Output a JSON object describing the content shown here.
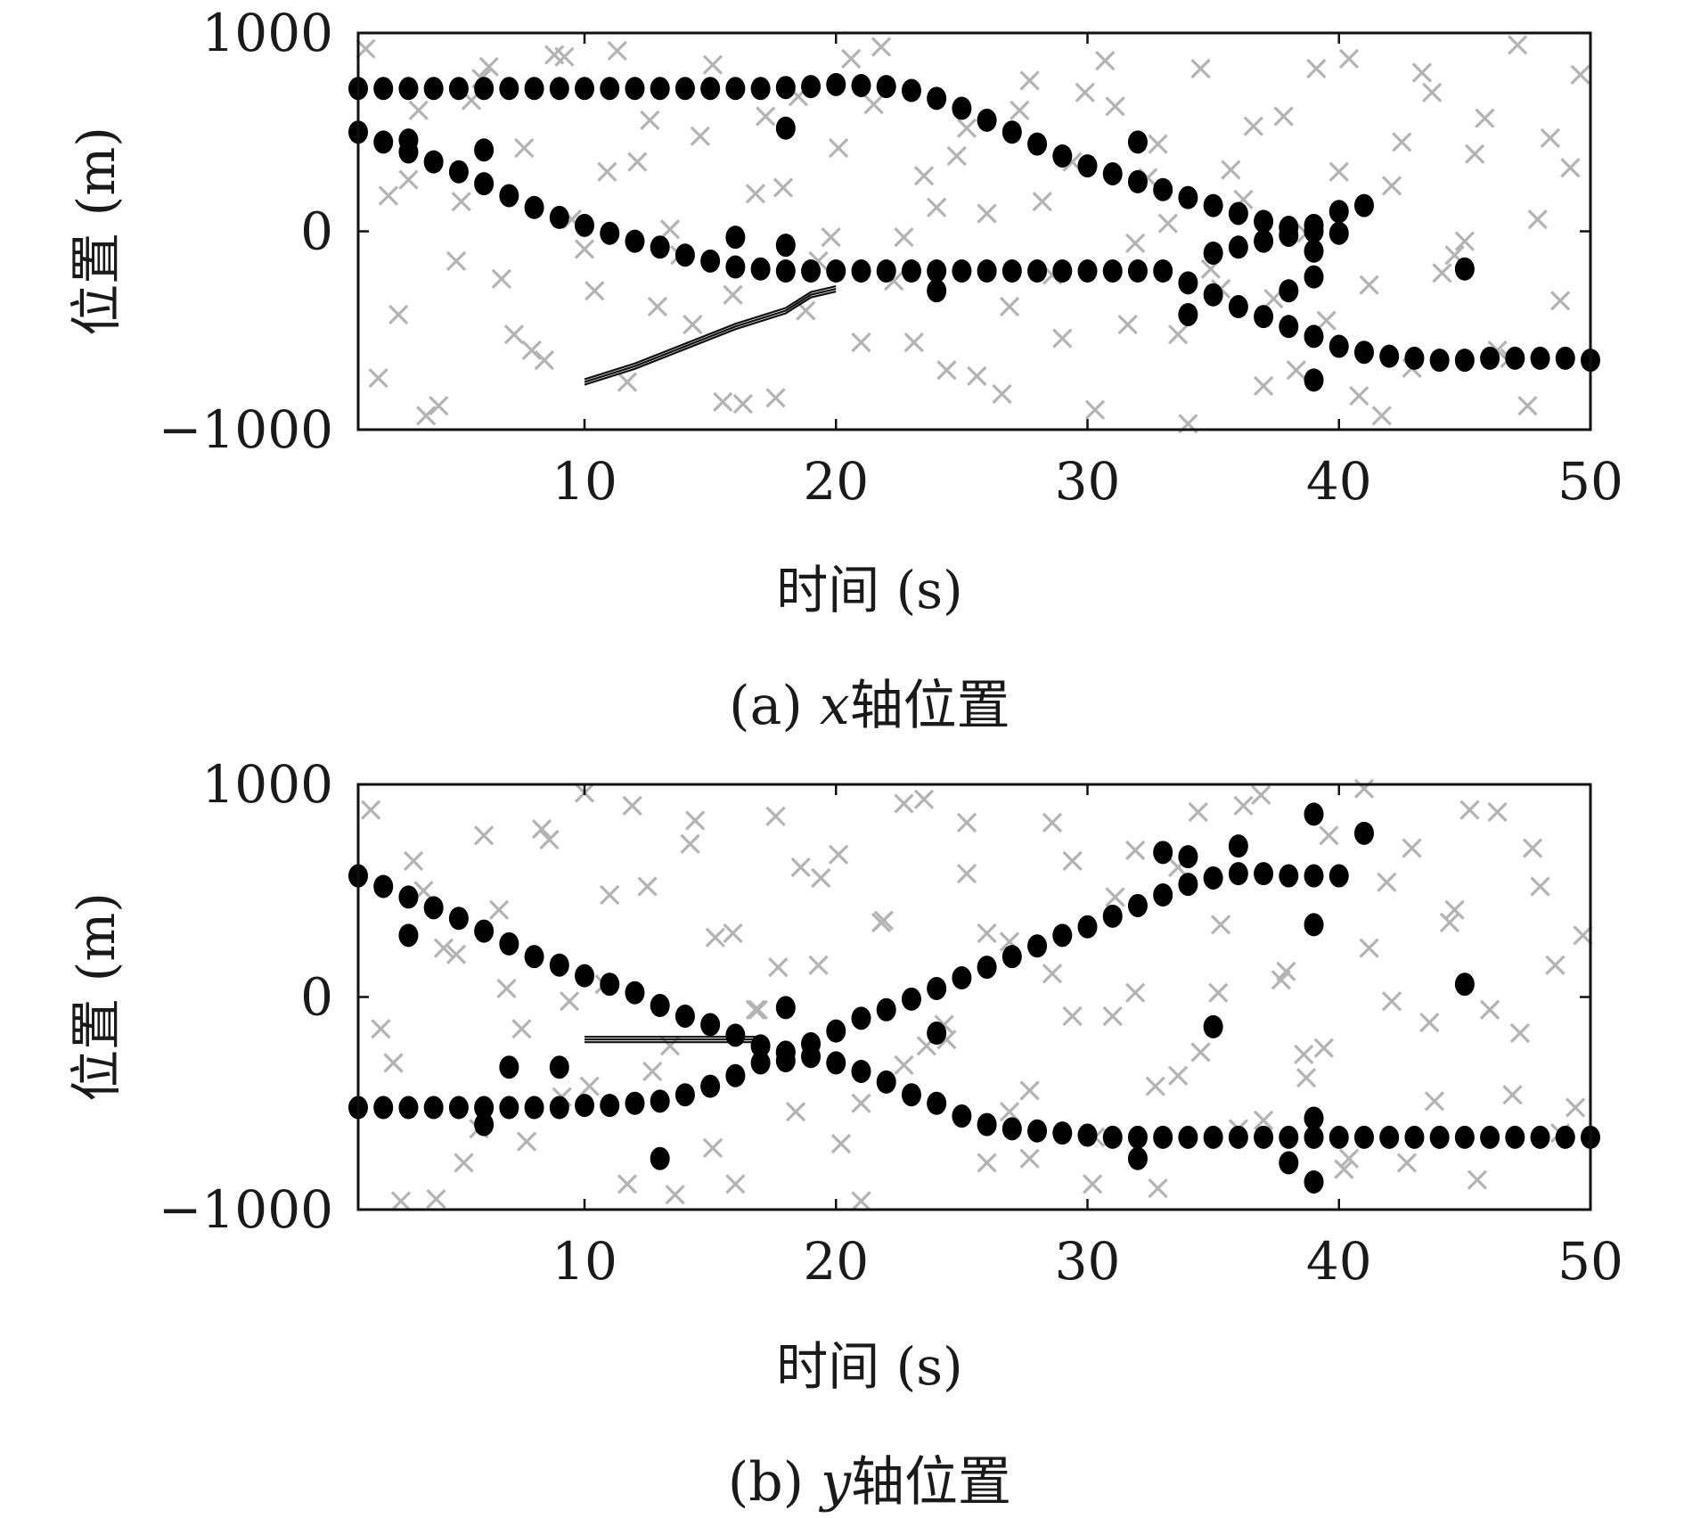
{
  "figure": {
    "panels": [
      {
        "caption_prefix": "(a) ",
        "caption_var": "x",
        "caption_suffix": "轴位置",
        "xlabel": "时间 (s)",
        "ylabel": "位置 (m)"
      },
      {
        "caption_prefix": "(b) ",
        "caption_var": "y",
        "caption_suffix": "轴位置",
        "xlabel": "时间 (s)",
        "ylabel": "位置 (m)"
      }
    ]
  },
  "colors": {
    "clutter": "#b3b3b3",
    "measurement": "#000000",
    "track": "#111111",
    "frame": "#111111"
  },
  "chart_data": [
    {
      "type": "scatter",
      "xlabel": "时间 (s)",
      "ylabel": "位置 (m)",
      "xlim": [
        1,
        50
      ],
      "ylim": [
        -1000,
        1000
      ],
      "xticks": [
        10,
        20,
        30,
        40,
        50
      ],
      "yticks": [
        -1000,
        0,
        1000
      ],
      "xtick_labels": [
        "10",
        "20",
        "30",
        "40",
        "50"
      ],
      "ytick_labels": [
        "−1000",
        "0",
        "1000"
      ],
      "grid": false,
      "series": [
        {
          "marker": "circle",
          "x": [
            1,
            2,
            3,
            4,
            5,
            6,
            7,
            8,
            9,
            10,
            11,
            12,
            13,
            14,
            15,
            16,
            17,
            18,
            19,
            20,
            21,
            22,
            23,
            24,
            25,
            26,
            27,
            28,
            29,
            30,
            31,
            32,
            33,
            34,
            35,
            36,
            37,
            38,
            39,
            40,
            1,
            2,
            3,
            4,
            5,
            6,
            7,
            8,
            9,
            10,
            11,
            12,
            13,
            14,
            15,
            16,
            17,
            18,
            19,
            20,
            21,
            22,
            23,
            24,
            25,
            26,
            27,
            28,
            29,
            30,
            31,
            32,
            33,
            34,
            35,
            36,
            37,
            38,
            39,
            40,
            41,
            42,
            43,
            44,
            45,
            46,
            47,
            48,
            49,
            50,
            35,
            36,
            37,
            38,
            39,
            40,
            18,
            32,
            16,
            18,
            24,
            34,
            39,
            41,
            45,
            38,
            6,
            3,
            39,
            39
          ],
          "y": [
            720,
            720,
            720,
            720,
            720,
            720,
            720,
            720,
            720,
            720,
            720,
            720,
            720,
            720,
            720,
            720,
            720,
            725,
            730,
            740,
            735,
            730,
            710,
            670,
            620,
            560,
            500,
            440,
            380,
            330,
            290,
            250,
            210,
            170,
            130,
            90,
            50,
            20,
            0,
            -10,
            500,
            450,
            400,
            350,
            300,
            240,
            180,
            120,
            70,
            30,
            -10,
            -50,
            -80,
            -120,
            -150,
            -180,
            -190,
            -200,
            -200,
            -200,
            -200,
            -200,
            -200,
            -200,
            -200,
            -200,
            -200,
            -200,
            -200,
            -200,
            -200,
            -200,
            -200,
            -260,
            -320,
            -380,
            -430,
            -480,
            -530,
            -580,
            -610,
            -630,
            -640,
            -650,
            -650,
            -640,
            -640,
            -640,
            -640,
            -650,
            -110,
            -80,
            -50,
            -20,
            30,
            100,
            520,
            450,
            -30,
            -70,
            -300,
            -420,
            -750,
            130,
            -190,
            -300,
            410,
            460,
            -230,
            -100
          ]
        },
        {
          "marker": "x",
          "x": [
            1.3,
            2.6,
            3.4,
            4.2,
            5.1,
            5.9,
            6.7,
            7.6,
            8.4,
            9.2,
            10.0,
            10.9,
            11.7,
            12.6,
            13.4,
            14.3,
            15.1,
            15.9,
            16.8,
            17.6,
            18.5,
            19.3,
            20.1,
            21.0,
            21.8,
            22.7,
            23.5,
            24.4,
            25.2,
            26.0,
            26.9,
            27.7,
            28.6,
            29.4,
            30.3,
            31.1,
            31.9,
            32.8,
            33.6,
            34.5,
            35.3,
            36.2,
            37.0,
            37.8,
            38.7,
            39.5,
            40.4,
            41.2,
            42.1,
            42.9,
            43.7,
            44.6,
            45.4,
            46.3,
            47.1,
            47.9,
            48.8,
            49.6,
            1.8,
            3.0,
            4.9,
            6.2,
            7.9,
            9.5,
            11.3,
            12.9,
            14.6,
            16.3,
            17.9,
            19.8,
            21.5,
            23.1,
            24.8,
            26.6,
            28.2,
            29.9,
            31.6,
            33.2,
            34.9,
            36.6,
            38.3,
            40.0,
            41.7,
            43.3,
            45.0,
            46.8,
            48.4,
            2.2,
            3.7,
            5.5,
            7.2,
            8.8,
            10.4,
            12.1,
            13.8,
            15.5,
            17.2,
            18.8,
            20.6,
            22.3,
            24.0,
            25.6,
            27.3,
            29.0,
            30.7,
            32.4,
            34.0,
            35.7,
            37.4,
            39.1,
            40.8,
            42.5,
            44.1,
            45.8,
            47.5,
            49.2
          ],
          "y": [
            920,
            -420,
            610,
            -880,
            150,
            770,
            -240,
            420,
            -650,
            880,
            -90,
            300,
            -760,
            560,
            10,
            -470,
            840,
            -320,
            190,
            -840,
            680,
            -150,
            420,
            -560,
            930,
            -30,
            280,
            -700,
            520,
            90,
            -380,
            760,
            -220,
            350,
            -900,
            630,
            -60,
            440,
            -520,
            820,
            -290,
            160,
            -780,
            580,
            -10,
            -450,
            870,
            -270,
            230,
            -690,
            700,
            -120,
            390,
            -600,
            940,
            60,
            -350,
            790,
            -740,
            260,
            -150,
            830,
            -600,
            60,
            910,
            -380,
            480,
            -870,
            220,
            -30,
            640,
            -560,
            380,
            -820,
            150,
            700,
            -470,
            40,
            -190,
            530,
            -700,
            300,
            -930,
            800,
            -50,
            -640,
            470,
            180,
            -930,
            660,
            -520,
            890,
            -300,
            350,
            -120,
            -860,
            580,
            -400,
            870,
            -250,
            120,
            -730,
            610,
            -540,
            860,
            270,
            -970,
            310,
            -340,
            820,
            -830,
            450,
            -210,
            570,
            -880,
            320
          ]
        },
        {
          "marker": "line",
          "x": [
            10,
            12,
            14,
            16,
            18,
            19,
            20
          ],
          "y": [
            -760,
            -680,
            -580,
            -480,
            -400,
            -320,
            -290
          ]
        }
      ]
    },
    {
      "type": "scatter",
      "xlabel": "时间 (s)",
      "ylabel": "位置 (m)",
      "xlim": [
        1,
        50
      ],
      "ylim": [
        -1000,
        1000
      ],
      "xticks": [
        10,
        20,
        30,
        40,
        50
      ],
      "yticks": [
        -1000,
        0,
        1000
      ],
      "xtick_labels": [
        "10",
        "20",
        "30",
        "40",
        "50"
      ],
      "ytick_labels": [
        "−1000",
        "0",
        "1000"
      ],
      "grid": false,
      "series": [
        {
          "marker": "circle",
          "x": [
            1,
            2,
            3,
            4,
            5,
            6,
            7,
            8,
            9,
            10,
            11,
            12,
            13,
            14,
            15,
            16,
            17,
            18,
            19,
            20,
            21,
            22,
            23,
            24,
            25,
            26,
            27,
            28,
            29,
            30,
            31,
            32,
            33,
            34,
            35,
            36,
            37,
            38,
            39,
            40,
            41,
            42,
            43,
            44,
            45,
            46,
            47,
            48,
            49,
            50,
            1,
            2,
            3,
            4,
            5,
            6,
            7,
            8,
            9,
            10,
            11,
            12,
            13,
            14,
            15,
            16,
            17,
            18,
            19,
            20,
            21,
            22,
            23,
            24,
            25,
            26,
            27,
            28,
            29,
            30,
            31,
            32,
            33,
            34,
            35,
            36,
            37,
            38,
            39,
            40,
            3,
            7,
            9,
            13,
            18,
            24,
            33,
            34,
            35,
            36,
            39,
            39,
            39,
            41,
            45,
            32,
            38,
            39,
            6,
            18
          ],
          "y": [
            570,
            520,
            470,
            420,
            370,
            310,
            250,
            190,
            150,
            100,
            60,
            20,
            -40,
            -90,
            -130,
            -180,
            -230,
            -260,
            -280,
            -310,
            -350,
            -400,
            -460,
            -500,
            -560,
            -600,
            -620,
            -630,
            -640,
            -650,
            -660,
            -660,
            -660,
            -660,
            -660,
            -660,
            -660,
            -660,
            -660,
            -660,
            -660,
            -660,
            -660,
            -660,
            -660,
            -660,
            -660,
            -660,
            -660,
            -660,
            -520,
            -520,
            -520,
            -520,
            -520,
            -520,
            -520,
            -520,
            -520,
            -510,
            -510,
            -500,
            -490,
            -460,
            -420,
            -370,
            -310,
            -260,
            -220,
            -160,
            -100,
            -60,
            -10,
            40,
            90,
            140,
            190,
            240,
            290,
            330,
            380,
            430,
            480,
            530,
            560,
            580,
            580,
            570,
            570,
            570,
            290,
            -330,
            -330,
            -760,
            -50,
            -170,
            680,
            660,
            -140,
            710,
            860,
            340,
            -570,
            770,
            60,
            -760,
            -780,
            -870,
            -600,
            -300
          ]
        },
        {
          "marker": "x",
          "x": [
            1.5,
            2.4,
            3.2,
            4.1,
            4.9,
            5.8,
            6.6,
            7.5,
            8.3,
            9.1,
            10.0,
            10.8,
            11.7,
            12.5,
            13.4,
            14.2,
            15.1,
            15.9,
            16.8,
            17.6,
            18.4,
            19.3,
            20.1,
            21.0,
            21.8,
            22.7,
            23.5,
            24.3,
            25.2,
            26.0,
            26.9,
            27.7,
            28.6,
            29.4,
            30.3,
            31.1,
            31.9,
            32.8,
            33.6,
            34.5,
            35.3,
            36.2,
            37.0,
            37.9,
            38.7,
            39.6,
            40.4,
            41.2,
            42.1,
            42.9,
            43.8,
            44.6,
            45.5,
            46.3,
            47.2,
            48.0,
            48.8,
            49.7,
            1.9,
            3.6,
            5.2,
            6.9,
            8.6,
            10.2,
            11.9,
            13.6,
            15.2,
            16.9,
            18.6,
            20.2,
            21.9,
            23.6,
            25.2,
            26.9,
            28.6,
            30.2,
            31.9,
            33.6,
            35.2,
            36.9,
            38.6,
            40.2,
            41.9,
            43.6,
            45.2,
            46.9,
            48.6,
            2.7,
            4.4,
            6.0,
            7.7,
            9.4,
            11.0,
            12.7,
            14.4,
            16.0,
            17.7,
            19.4,
            21.0,
            22.7,
            24.4,
            26.0,
            27.7,
            29.4,
            31.0,
            32.7,
            34.4,
            36.0,
            37.7,
            39.4,
            41.0,
            42.7,
            44.4,
            46.0,
            47.7,
            49.4
          ],
          "y": [
            880,
            -310,
            640,
            -950,
            200,
            -620,
            410,
            -150,
            790,
            -470,
            960,
            60,
            -880,
            520,
            -230,
            720,
            -710,
            300,
            -60,
            850,
            -540,
            150,
            670,
            -960,
            350,
            -320,
            930,
            -130,
            580,
            -780,
            260,
            -440,
            820,
            -90,
            -660,
            470,
            20,
            -900,
            610,
            -260,
            340,
            900,
            -580,
            120,
            -380,
            760,
            -760,
            230,
            -20,
            700,
            -490,
            410,
            -860,
            870,
            -170,
            520,
            -640,
            290,
            -150,
            500,
            -780,
            40,
            740,
            -420,
            900,
            -930,
            280,
            -60,
            610,
            -690,
            360,
            -230,
            820,
            -540,
            110,
            -880,
            690,
            -370,
            20,
            950,
            -270,
            -810,
            540,
            -120,
            880,
            -460,
            150,
            -960,
            230,
            760,
            -680,
            -20,
            480,
            -350,
            830,
            -880,
            140,
            560,
            -500,
            910,
            -200,
            300,
            -760,
            640,
            -90,
            -420,
            870,
            -620,
            80,
            -240,
            980,
            -780,
            350,
            -60,
            700,
            -520
          ]
        },
        {
          "marker": "line",
          "x": [
            10,
            12,
            14,
            16,
            17
          ],
          "y": [
            -200,
            -200,
            -200,
            -200,
            -200
          ]
        }
      ]
    }
  ]
}
